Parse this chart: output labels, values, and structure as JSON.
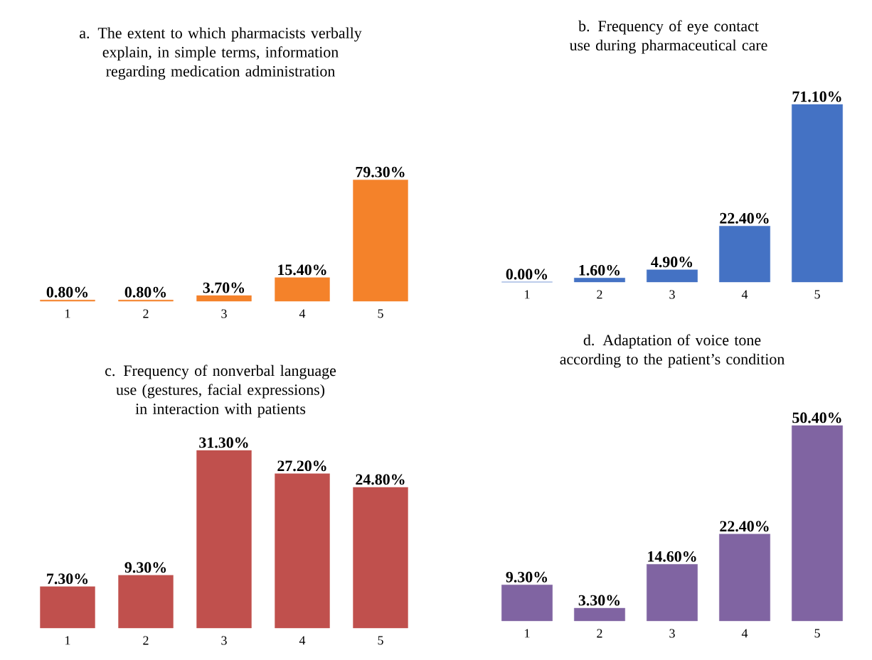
{
  "chart_data": [
    {
      "type": "bar",
      "title": "a. The extent to which pharmacists verbally explain, in simple terms, information regarding medication administration",
      "categories": [
        "1",
        "2",
        "3",
        "4",
        "5"
      ],
      "values": [
        0.8,
        0.8,
        3.7,
        15.4,
        79.3
      ],
      "value_labels": [
        "0.80%",
        "0.80%",
        "3.70%",
        "15.40%",
        "79.30%"
      ],
      "color": "#f4822a"
    },
    {
      "type": "bar",
      "title": "b. Frequency of eye contact use during pharmaceutical care",
      "categories": [
        "1",
        "2",
        "3",
        "4",
        "5"
      ],
      "values": [
        0.0,
        1.6,
        4.9,
        22.4,
        71.1
      ],
      "value_labels": [
        "0.00%",
        "1.60%",
        "4.90%",
        "22.40%",
        "71.10%"
      ],
      "color": "#4472c4"
    },
    {
      "type": "bar",
      "title": "c. Frequency of nonverbal language use (gestures, facial expressions) in interaction with patients",
      "categories": [
        "1",
        "2",
        "3",
        "4",
        "5"
      ],
      "values": [
        7.3,
        9.3,
        31.3,
        27.2,
        24.8
      ],
      "value_labels": [
        "7.30%",
        "9.30%",
        "31.30%",
        "27.20%",
        "24.80%"
      ],
      "color": "#c0504d"
    },
    {
      "type": "bar",
      "title": "d. Adaptation of voice tone according to the patient’s condition",
      "categories": [
        "1",
        "2",
        "3",
        "4",
        "5"
      ],
      "values": [
        9.3,
        3.3,
        14.6,
        22.4,
        50.4
      ],
      "value_labels": [
        "9.30%",
        "3.30%",
        "14.60%",
        "22.40%",
        "50.40%"
      ],
      "color": "#8064a2"
    }
  ]
}
